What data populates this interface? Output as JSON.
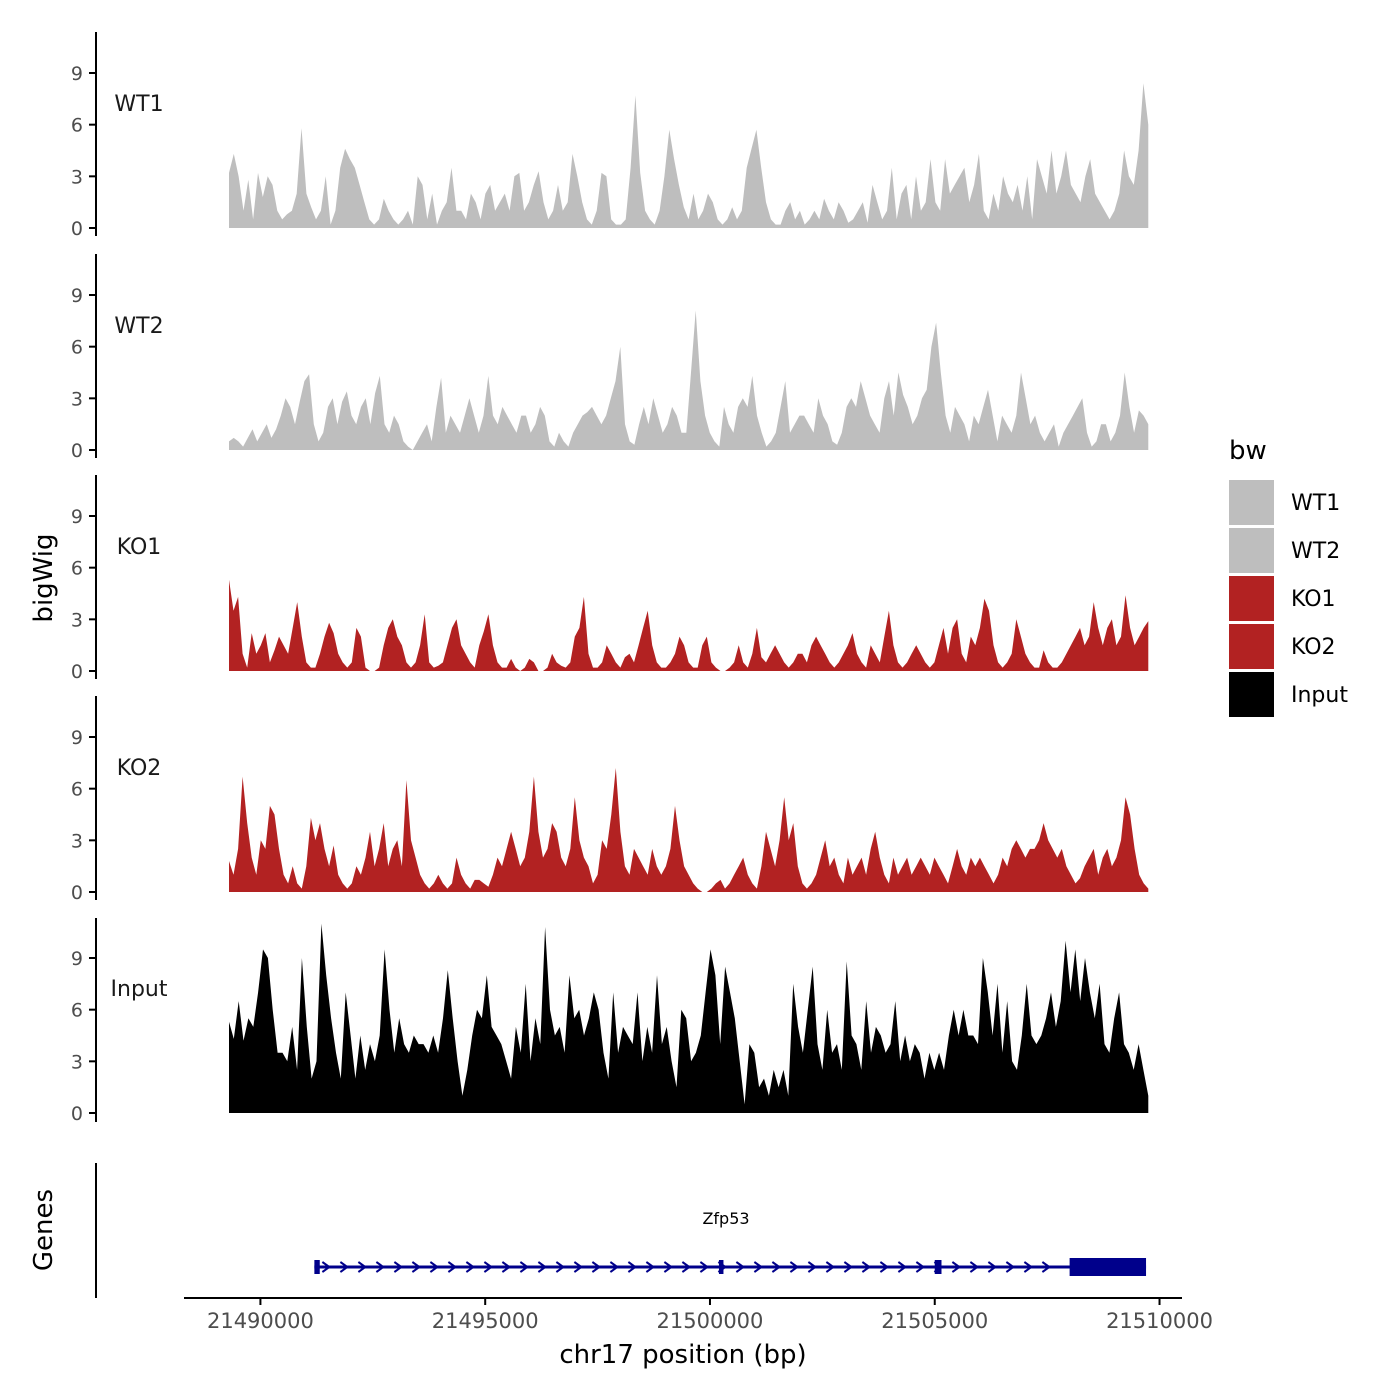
{
  "chart_data": {
    "type": "area",
    "ylabel": "bigWig",
    "xlabel": "chr17 position (bp)",
    "ylim": [
      0,
      11.5
    ],
    "yticks": [
      0,
      3,
      6,
      9
    ],
    "xlim": [
      21488300,
      21510500
    ],
    "xticks": [
      21490000,
      21495000,
      21500000,
      21505000,
      21510000
    ],
    "xtick_labels": [
      "21490000",
      "21495000",
      "21500000",
      "21505000",
      "21510000"
    ],
    "data_range": [
      21489300,
      21509750
    ],
    "legend_title": "bw",
    "colors": {
      "WT": "#bebebe",
      "KO": "#b22222",
      "Input": "#000000",
      "gene": "#00008b"
    },
    "series": [
      {
        "name": "WT1",
        "color": "#bebebe",
        "values": [
          3.2,
          4.3,
          3.0,
          1.0,
          2.8,
          0.5,
          3.2,
          1.8,
          3.0,
          2.5,
          1.0,
          0.5,
          0.8,
          1.0,
          2.0,
          5.8,
          2.0,
          1.2,
          0.5,
          1.0,
          3.0,
          0.2,
          1.0,
          3.5,
          4.6,
          4.0,
          3.5,
          2.5,
          1.5,
          0.5,
          0.2,
          0.5,
          1.7,
          1.0,
          0.5,
          0.2,
          0.5,
          1.0,
          0.2,
          3.0,
          2.5,
          0.5,
          2.0,
          0.2,
          1.0,
          1.5,
          3.5,
          1.0,
          1.0,
          0.5,
          2.0,
          1.5,
          0.5,
          2.0,
          2.5,
          1.0,
          1.5,
          2.0,
          1.0,
          3.0,
          3.2,
          1.0,
          1.5,
          2.5,
          3.3,
          1.5,
          0.5,
          1.0,
          2.5,
          1.0,
          1.5,
          4.3,
          3.0,
          1.5,
          0.5,
          0.2,
          1.0,
          3.2,
          3.0,
          0.5,
          0.2,
          0.2,
          0.5,
          3.5,
          7.7,
          3.2,
          1.0,
          0.5,
          0.2,
          1.0,
          3.0,
          5.7,
          4.0,
          2.5,
          1.2,
          0.5,
          2.0,
          0.5,
          1.0,
          2.0,
          1.5,
          0.5,
          0.2,
          0.5,
          1.2,
          0.5,
          1.0,
          3.5,
          4.6,
          5.7,
          3.5,
          1.5,
          0.5,
          0.2,
          0.2,
          1.0,
          1.5,
          0.5,
          1.0,
          0.2,
          0.5,
          1.0,
          0.5,
          1.7,
          1.0,
          0.5,
          1.5,
          1.0,
          0.3,
          0.5,
          1.0,
          1.5,
          0.3,
          2.5,
          1.5,
          0.5,
          1.0,
          3.5,
          0.5,
          2.0,
          2.5,
          0.5,
          3.0,
          1.0,
          1.5,
          4.0,
          1.5,
          1.0,
          4.0,
          2.0,
          2.5,
          3.0,
          3.5,
          1.5,
          2.5,
          4.3,
          1.0,
          0.5,
          2.0,
          1.0,
          3.0,
          2.0,
          1.5,
          2.5,
          1.0,
          3.0,
          0.5,
          4.0,
          3.0,
          2.0,
          4.5,
          2.0,
          3.0,
          4.5,
          2.5,
          2.0,
          1.5,
          3.0,
          4.0,
          2.0,
          1.5,
          1.0,
          0.5,
          1.0,
          2.0,
          4.5,
          3.0,
          2.5,
          4.5,
          8.4,
          6.0
        ]
      },
      {
        "name": "WT2",
        "color": "#bebebe",
        "values": [
          0.5,
          0.7,
          0.5,
          0.2,
          0.7,
          1.2,
          0.5,
          1.0,
          1.5,
          0.7,
          1.2,
          2.0,
          3.0,
          2.5,
          1.5,
          2.8,
          4.0,
          4.4,
          1.5,
          0.5,
          1.0,
          2.5,
          3.0,
          1.5,
          2.8,
          3.4,
          2.0,
          1.5,
          2.5,
          3.0,
          1.5,
          3.3,
          4.3,
          1.5,
          1.0,
          2.0,
          1.5,
          0.5,
          0.2,
          0.0,
          0.5,
          1.0,
          1.5,
          0.5,
          2.5,
          4.2,
          1.0,
          2.0,
          1.5,
          1.0,
          2.0,
          3.0,
          2.0,
          1.0,
          2.0,
          4.3,
          2.0,
          1.5,
          2.5,
          2.0,
          1.5,
          1.0,
          2.0,
          2.0,
          1.0,
          1.5,
          2.5,
          2.0,
          0.5,
          0.2,
          1.0,
          0.5,
          0.2,
          1.0,
          1.5,
          2.0,
          2.2,
          2.5,
          2.0,
          1.5,
          2.0,
          3.0,
          4.0,
          6.0,
          1.5,
          0.5,
          0.3,
          1.5,
          2.5,
          1.5,
          3.0,
          2.0,
          1.0,
          1.5,
          2.5,
          2.0,
          1.0,
          1.0,
          4.5,
          8.1,
          4.0,
          2.0,
          1.0,
          0.5,
          0.2,
          2.5,
          1.5,
          1.0,
          2.5,
          3.0,
          2.5,
          4.3,
          2.0,
          1.0,
          0.2,
          0.5,
          1.0,
          2.5,
          4.0,
          1.0,
          1.5,
          2.0,
          2.0,
          1.5,
          1.0,
          3.0,
          2.0,
          1.5,
          0.5,
          0.3,
          1.0,
          2.5,
          3.0,
          2.5,
          4.0,
          3.0,
          2.0,
          1.5,
          1.0,
          3.0,
          4.0,
          2.0,
          4.5,
          3.2,
          2.5,
          1.5,
          2.0,
          3.0,
          3.5,
          6.0,
          7.4,
          4.5,
          2.0,
          1.0,
          2.5,
          2.0,
          1.5,
          0.5,
          2.0,
          1.5,
          2.5,
          3.5,
          2.0,
          0.5,
          2.0,
          1.5,
          1.0,
          2.0,
          4.5,
          3.0,
          1.5,
          2.0,
          1.0,
          0.5,
          1.0,
          1.5,
          0.2,
          1.0,
          1.5,
          2.0,
          2.5,
          3.0,
          1.0,
          0.2,
          0.5,
          1.5,
          1.5,
          0.5,
          1.0,
          2.0,
          4.5,
          2.5,
          1.0,
          2.3,
          2.0,
          1.5
        ]
      },
      {
        "name": "KO1",
        "color": "#b22222",
        "values": [
          5.3,
          3.5,
          4.3,
          1.0,
          0.2,
          2.2,
          1.0,
          1.5,
          2.2,
          0.5,
          1.2,
          2.0,
          1.5,
          1.0,
          2.5,
          4.0,
          2.0,
          0.5,
          0.2,
          0.2,
          1.0,
          2.0,
          2.8,
          2.2,
          1.0,
          0.5,
          0.2,
          0.5,
          2.5,
          2.0,
          0.2,
          0.0,
          0.0,
          0.2,
          1.5,
          2.5,
          3.0,
          2.0,
          1.5,
          0.5,
          0.2,
          0.5,
          1.5,
          3.3,
          0.5,
          0.2,
          0.3,
          0.5,
          1.5,
          2.5,
          3.0,
          1.5,
          1.0,
          0.5,
          0.2,
          1.5,
          2.3,
          3.3,
          1.5,
          0.5,
          0.2,
          0.2,
          0.7,
          0.2,
          0.0,
          0.2,
          0.7,
          0.5,
          0.0,
          0.0,
          0.2,
          1.0,
          0.5,
          0.3,
          0.2,
          0.5,
          2.0,
          2.5,
          4.3,
          1.0,
          0.2,
          0.2,
          0.5,
          1.5,
          1.0,
          0.5,
          0.2,
          0.8,
          1.0,
          0.5,
          1.5,
          2.5,
          3.5,
          1.5,
          0.5,
          0.2,
          0.2,
          0.5,
          1.0,
          2.0,
          1.5,
          0.5,
          0.2,
          0.2,
          1.5,
          2.0,
          0.5,
          0.2,
          0.0,
          0.0,
          0.2,
          0.5,
          1.5,
          0.5,
          0.2,
          1.0,
          2.5,
          0.8,
          0.5,
          1.0,
          1.5,
          1.0,
          0.5,
          0.2,
          0.5,
          1.0,
          1.0,
          0.5,
          1.5,
          2.0,
          1.5,
          1.0,
          0.5,
          0.2,
          0.5,
          1.0,
          1.5,
          2.2,
          1.0,
          0.5,
          0.2,
          1.5,
          1.0,
          0.5,
          2.0,
          3.5,
          1.5,
          0.5,
          0.2,
          0.5,
          1.0,
          1.5,
          1.0,
          0.5,
          0.2,
          0.5,
          1.5,
          2.5,
          1.0,
          2.5,
          3.0,
          1.0,
          0.5,
          2.0,
          1.5,
          2.5,
          4.2,
          3.5,
          1.5,
          0.5,
          0.2,
          0.5,
          1.0,
          3.0,
          2.0,
          1.0,
          0.5,
          0.2,
          0.2,
          1.2,
          0.5,
          0.2,
          0.2,
          0.5,
          1.0,
          1.5,
          2.0,
          2.5,
          1.5,
          2.0,
          4.0,
          2.5,
          1.5,
          2.5,
          3.0,
          1.5,
          2.0,
          4.4,
          2.5,
          1.5,
          2.0,
          2.5,
          2.9
        ]
      },
      {
        "name": "KO2",
        "color": "#b22222",
        "values": [
          1.8,
          1.0,
          2.5,
          6.7,
          4.0,
          2.0,
          1.0,
          3.0,
          2.5,
          5.0,
          4.5,
          2.5,
          1.0,
          0.5,
          1.5,
          0.5,
          0.2,
          1.5,
          4.3,
          3.0,
          4.0,
          2.5,
          1.5,
          2.7,
          1.0,
          0.5,
          0.2,
          0.5,
          1.5,
          1.0,
          2.0,
          3.5,
          1.5,
          2.5,
          4.0,
          1.5,
          2.5,
          3.0,
          1.5,
          6.5,
          3.0,
          2.0,
          1.0,
          0.5,
          0.2,
          0.5,
          1.0,
          0.5,
          0.2,
          0.5,
          2.0,
          1.0,
          0.5,
          0.2,
          0.7,
          0.7,
          0.5,
          0.3,
          1.0,
          2.0,
          1.5,
          2.5,
          3.5,
          2.5,
          1.5,
          2.0,
          3.5,
          6.7,
          3.5,
          2.0,
          2.5,
          4.0,
          3.5,
          2.0,
          1.5,
          2.5,
          5.5,
          3.0,
          2.0,
          1.5,
          0.5,
          1.0,
          3.0,
          2.5,
          4.5,
          7.2,
          3.5,
          1.5,
          1.0,
          2.5,
          2.0,
          1.5,
          1.0,
          2.5,
          1.5,
          1.0,
          1.5,
          2.5,
          5.0,
          3.0,
          1.5,
          1.0,
          0.5,
          0.2,
          0.0,
          0.0,
          0.2,
          0.5,
          0.7,
          0.2,
          0.5,
          1.0,
          1.5,
          2.0,
          1.0,
          0.5,
          0.2,
          1.5,
          3.5,
          2.5,
          1.5,
          3.0,
          5.5,
          3.0,
          4.0,
          1.5,
          0.5,
          0.2,
          0.5,
          1.0,
          2.0,
          3.0,
          1.5,
          2.0,
          1.0,
          0.5,
          2.0,
          1.0,
          1.5,
          2.0,
          1.0,
          2.5,
          3.5,
          2.0,
          1.0,
          0.5,
          2.0,
          1.0,
          1.5,
          2.0,
          1.0,
          1.5,
          2.0,
          1.5,
          1.0,
          2.0,
          1.5,
          1.0,
          0.5,
          1.5,
          2.5,
          1.5,
          1.0,
          2.0,
          1.5,
          2.0,
          1.5,
          1.0,
          0.5,
          1.0,
          2.0,
          1.5,
          2.5,
          3.0,
          2.5,
          2.0,
          2.5,
          2.5,
          3.0,
          4.0,
          3.0,
          2.5,
          2.0,
          2.5,
          1.5,
          1.0,
          0.5,
          0.8,
          1.5,
          2.0,
          2.5,
          1.0,
          2.0,
          2.5,
          1.5,
          2.0,
          3.0,
          5.5,
          4.5,
          2.5,
          1.0,
          0.5,
          0.2
        ]
      },
      {
        "name": "Input",
        "color": "#000000",
        "values": [
          5.3,
          4.3,
          6.5,
          4.2,
          5.5,
          5.0,
          7.0,
          9.5,
          9.0,
          6.0,
          3.5,
          3.5,
          3.0,
          5.0,
          2.5,
          9.0,
          5.0,
          2.0,
          3.0,
          11.0,
          8.0,
          5.5,
          3.5,
          2.0,
          7.0,
          4.5,
          2.0,
          4.5,
          2.5,
          4.0,
          3.0,
          4.5,
          9.5,
          6.0,
          3.5,
          5.5,
          4.0,
          3.5,
          4.5,
          4.0,
          4.0,
          3.5,
          4.5,
          3.5,
          5.5,
          8.3,
          5.5,
          3.0,
          1.0,
          2.5,
          4.5,
          6.0,
          5.5,
          8.0,
          5.0,
          4.5,
          4.0,
          3.0,
          2.0,
          5.0,
          3.5,
          7.5,
          3.0,
          5.5,
          4.0,
          10.8,
          6.0,
          4.5,
          5.0,
          3.5,
          8.0,
          5.5,
          6.0,
          4.5,
          5.5,
          7.0,
          6.0,
          3.5,
          2.0,
          7.0,
          3.5,
          5.0,
          4.5,
          4.0,
          7.0,
          3.0,
          5.0,
          3.5,
          8.0,
          4.0,
          5.0,
          3.0,
          1.5,
          6.0,
          5.5,
          3.0,
          3.5,
          4.5,
          7.0,
          9.5,
          8.0,
          4.0,
          8.5,
          7.0,
          5.5,
          3.0,
          0.5,
          4.0,
          3.5,
          1.5,
          2.0,
          1.0,
          2.5,
          1.5,
          2.5,
          1.0,
          7.5,
          5.0,
          3.5,
          6.0,
          8.5,
          4.0,
          2.5,
          6.0,
          3.5,
          4.0,
          2.5,
          8.8,
          4.5,
          4.0,
          2.5,
          6.5,
          3.5,
          5.0,
          4.5,
          3.5,
          4.0,
          6.5,
          3.0,
          4.5,
          3.0,
          4.0,
          3.5,
          2.0,
          3.5,
          2.5,
          3.5,
          2.5,
          4.5,
          6.0,
          4.5,
          6.0,
          4.5,
          4.5,
          4.0,
          9.0,
          7.0,
          4.5,
          7.5,
          3.5,
          6.5,
          3.0,
          2.5,
          4.5,
          7.5,
          4.5,
          4.0,
          4.5,
          5.5,
          7.0,
          5.0,
          6.5,
          10.0,
          7.0,
          9.5,
          6.5,
          9.0,
          7.0,
          5.5,
          7.5,
          4.0,
          3.5,
          5.5,
          7.0,
          4.0,
          3.5,
          2.5,
          4.0,
          2.5,
          1.0
        ]
      }
    ],
    "legend": [
      {
        "label": "WT1",
        "color": "#bebebe"
      },
      {
        "label": "WT2",
        "color": "#bebebe"
      },
      {
        "label": "KO1",
        "color": "#b22222"
      },
      {
        "label": "KO2",
        "color": "#b22222"
      },
      {
        "label": "Input",
        "color": "#000000"
      }
    ],
    "genes_panel": {
      "label": "Genes",
      "gene_name": "Zfp53",
      "strand": "+",
      "tx_start": 21491200,
      "tx_end": 21509700,
      "exons": [
        {
          "start": 21491200,
          "end": 21491320,
          "thick": false
        },
        {
          "start": 21500200,
          "end": 21500300,
          "thick": false
        },
        {
          "start": 21505000,
          "end": 21505150,
          "thick": false
        },
        {
          "start": 21508000,
          "end": 21509700,
          "thick": true
        }
      ]
    }
  }
}
